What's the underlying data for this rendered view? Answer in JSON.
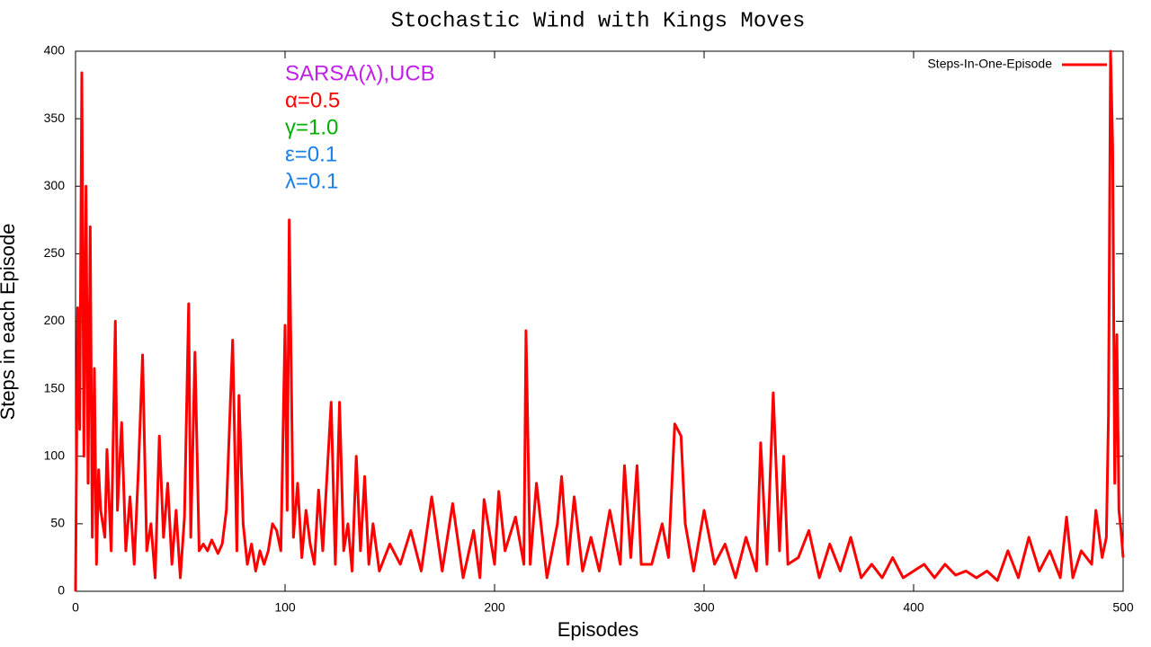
{
  "chart_data": {
    "type": "line",
    "title": "Stochastic Wind with Kings Moves",
    "xlabel": "Episodes",
    "ylabel": "Steps in each Episode",
    "annotations": [
      {
        "text": "SARSA(λ),UCB",
        "color": "#c020e8"
      },
      {
        "text": "α=0.5",
        "color": "#ff0000"
      },
      {
        "text": "γ=1.0",
        "color": "#00b000"
      },
      {
        "text": "ε=0.1",
        "color": "#1a80e8"
      },
      {
        "text": "λ=0.1",
        "color": "#1a80e8"
      }
    ],
    "legend": "upper right",
    "xlim": [
      0,
      500
    ],
    "xticks": [
      0,
      100,
      200,
      300,
      400,
      500
    ],
    "ylim": [
      0,
      400
    ],
    "yticks": [
      0,
      50,
      100,
      150,
      200,
      250,
      300,
      350,
      400
    ],
    "x": [
      0,
      1,
      2,
      3,
      4,
      5,
      6,
      7,
      8,
      9,
      10,
      11,
      12,
      14,
      15,
      17,
      19,
      20,
      22,
      24,
      26,
      28,
      30,
      32,
      34,
      36,
      38,
      40,
      42,
      44,
      46,
      48,
      50,
      52,
      54,
      55,
      57,
      59,
      61,
      63,
      65,
      68,
      70,
      72,
      75,
      77,
      78,
      80,
      82,
      84,
      86,
      88,
      90,
      92,
      94,
      96,
      98,
      100,
      101,
      102,
      104,
      106,
      108,
      110,
      112,
      114,
      116,
      118,
      120,
      122,
      124,
      126,
      128,
      130,
      132,
      134,
      136,
      138,
      140,
      142,
      145,
      150,
      155,
      160,
      165,
      170,
      175,
      180,
      185,
      190,
      193,
      195,
      200,
      202,
      205,
      210,
      214,
      215,
      217,
      220,
      225,
      230,
      232,
      235,
      238,
      242,
      246,
      250,
      255,
      260,
      262,
      265,
      268,
      270,
      275,
      280,
      283,
      286,
      289,
      291,
      295,
      300,
      305,
      310,
      315,
      320,
      325,
      327,
      330,
      333,
      336,
      338,
      340,
      345,
      350,
      355,
      360,
      365,
      370,
      375,
      380,
      385,
      390,
      395,
      400,
      405,
      410,
      415,
      420,
      425,
      430,
      435,
      440,
      445,
      450,
      455,
      460,
      465,
      470,
      473,
      476,
      480,
      485,
      487,
      490,
      492,
      493,
      494,
      495,
      496,
      497,
      498,
      499,
      500
    ],
    "series": [
      {
        "name": "Steps-In-One-Episode",
        "color": "#ff0000",
        "values": [
          0,
          210,
          120,
          384,
          100,
          300,
          80,
          270,
          40,
          165,
          20,
          90,
          60,
          40,
          105,
          30,
          200,
          60,
          125,
          30,
          70,
          20,
          90,
          175,
          30,
          50,
          10,
          115,
          40,
          80,
          20,
          60,
          10,
          55,
          213,
          40,
          177,
          30,
          35,
          30,
          38,
          28,
          35,
          60,
          186,
          30,
          145,
          50,
          20,
          35,
          15,
          30,
          20,
          30,
          50,
          45,
          30,
          197,
          60,
          275,
          40,
          80,
          25,
          60,
          35,
          20,
          75,
          30,
          85,
          140,
          20,
          140,
          30,
          50,
          15,
          100,
          30,
          85,
          20,
          50,
          15,
          35,
          20,
          45,
          15,
          70,
          15,
          65,
          10,
          45,
          10,
          68,
          20,
          74,
          30,
          55,
          20,
          193,
          20,
          80,
          10,
          50,
          85,
          20,
          70,
          15,
          40,
          15,
          60,
          20,
          93,
          25,
          93,
          20,
          20,
          50,
          25,
          124,
          115,
          50,
          15,
          60,
          20,
          35,
          10,
          40,
          15,
          110,
          20,
          147,
          30,
          100,
          20,
          25,
          45,
          10,
          35,
          15,
          40,
          10,
          20,
          10,
          25,
          10,
          15,
          20,
          10,
          20,
          12,
          15,
          10,
          15,
          8,
          30,
          10,
          40,
          15,
          30,
          10,
          55,
          10,
          30,
          20,
          60,
          25,
          40,
          130,
          400,
          330,
          80,
          190,
          60,
          45,
          25
        ]
      }
    ]
  }
}
